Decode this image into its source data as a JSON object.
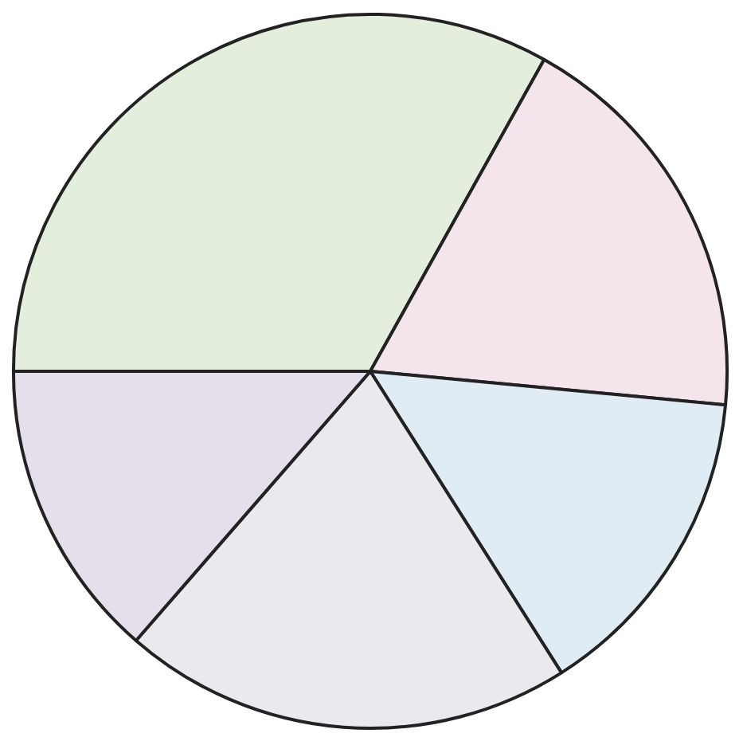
{
  "chart_data": {
    "type": "pie",
    "categories": [
      null,
      null,
      null,
      null,
      null
    ],
    "values": [
      33.1,
      18.4,
      14.5,
      20.4,
      13.6
    ],
    "colors": [
      "#e4eedc",
      "#f4e4ec",
      "#dfecf4",
      "#eaeaee",
      "#e4dfeb"
    ]
  }
}
